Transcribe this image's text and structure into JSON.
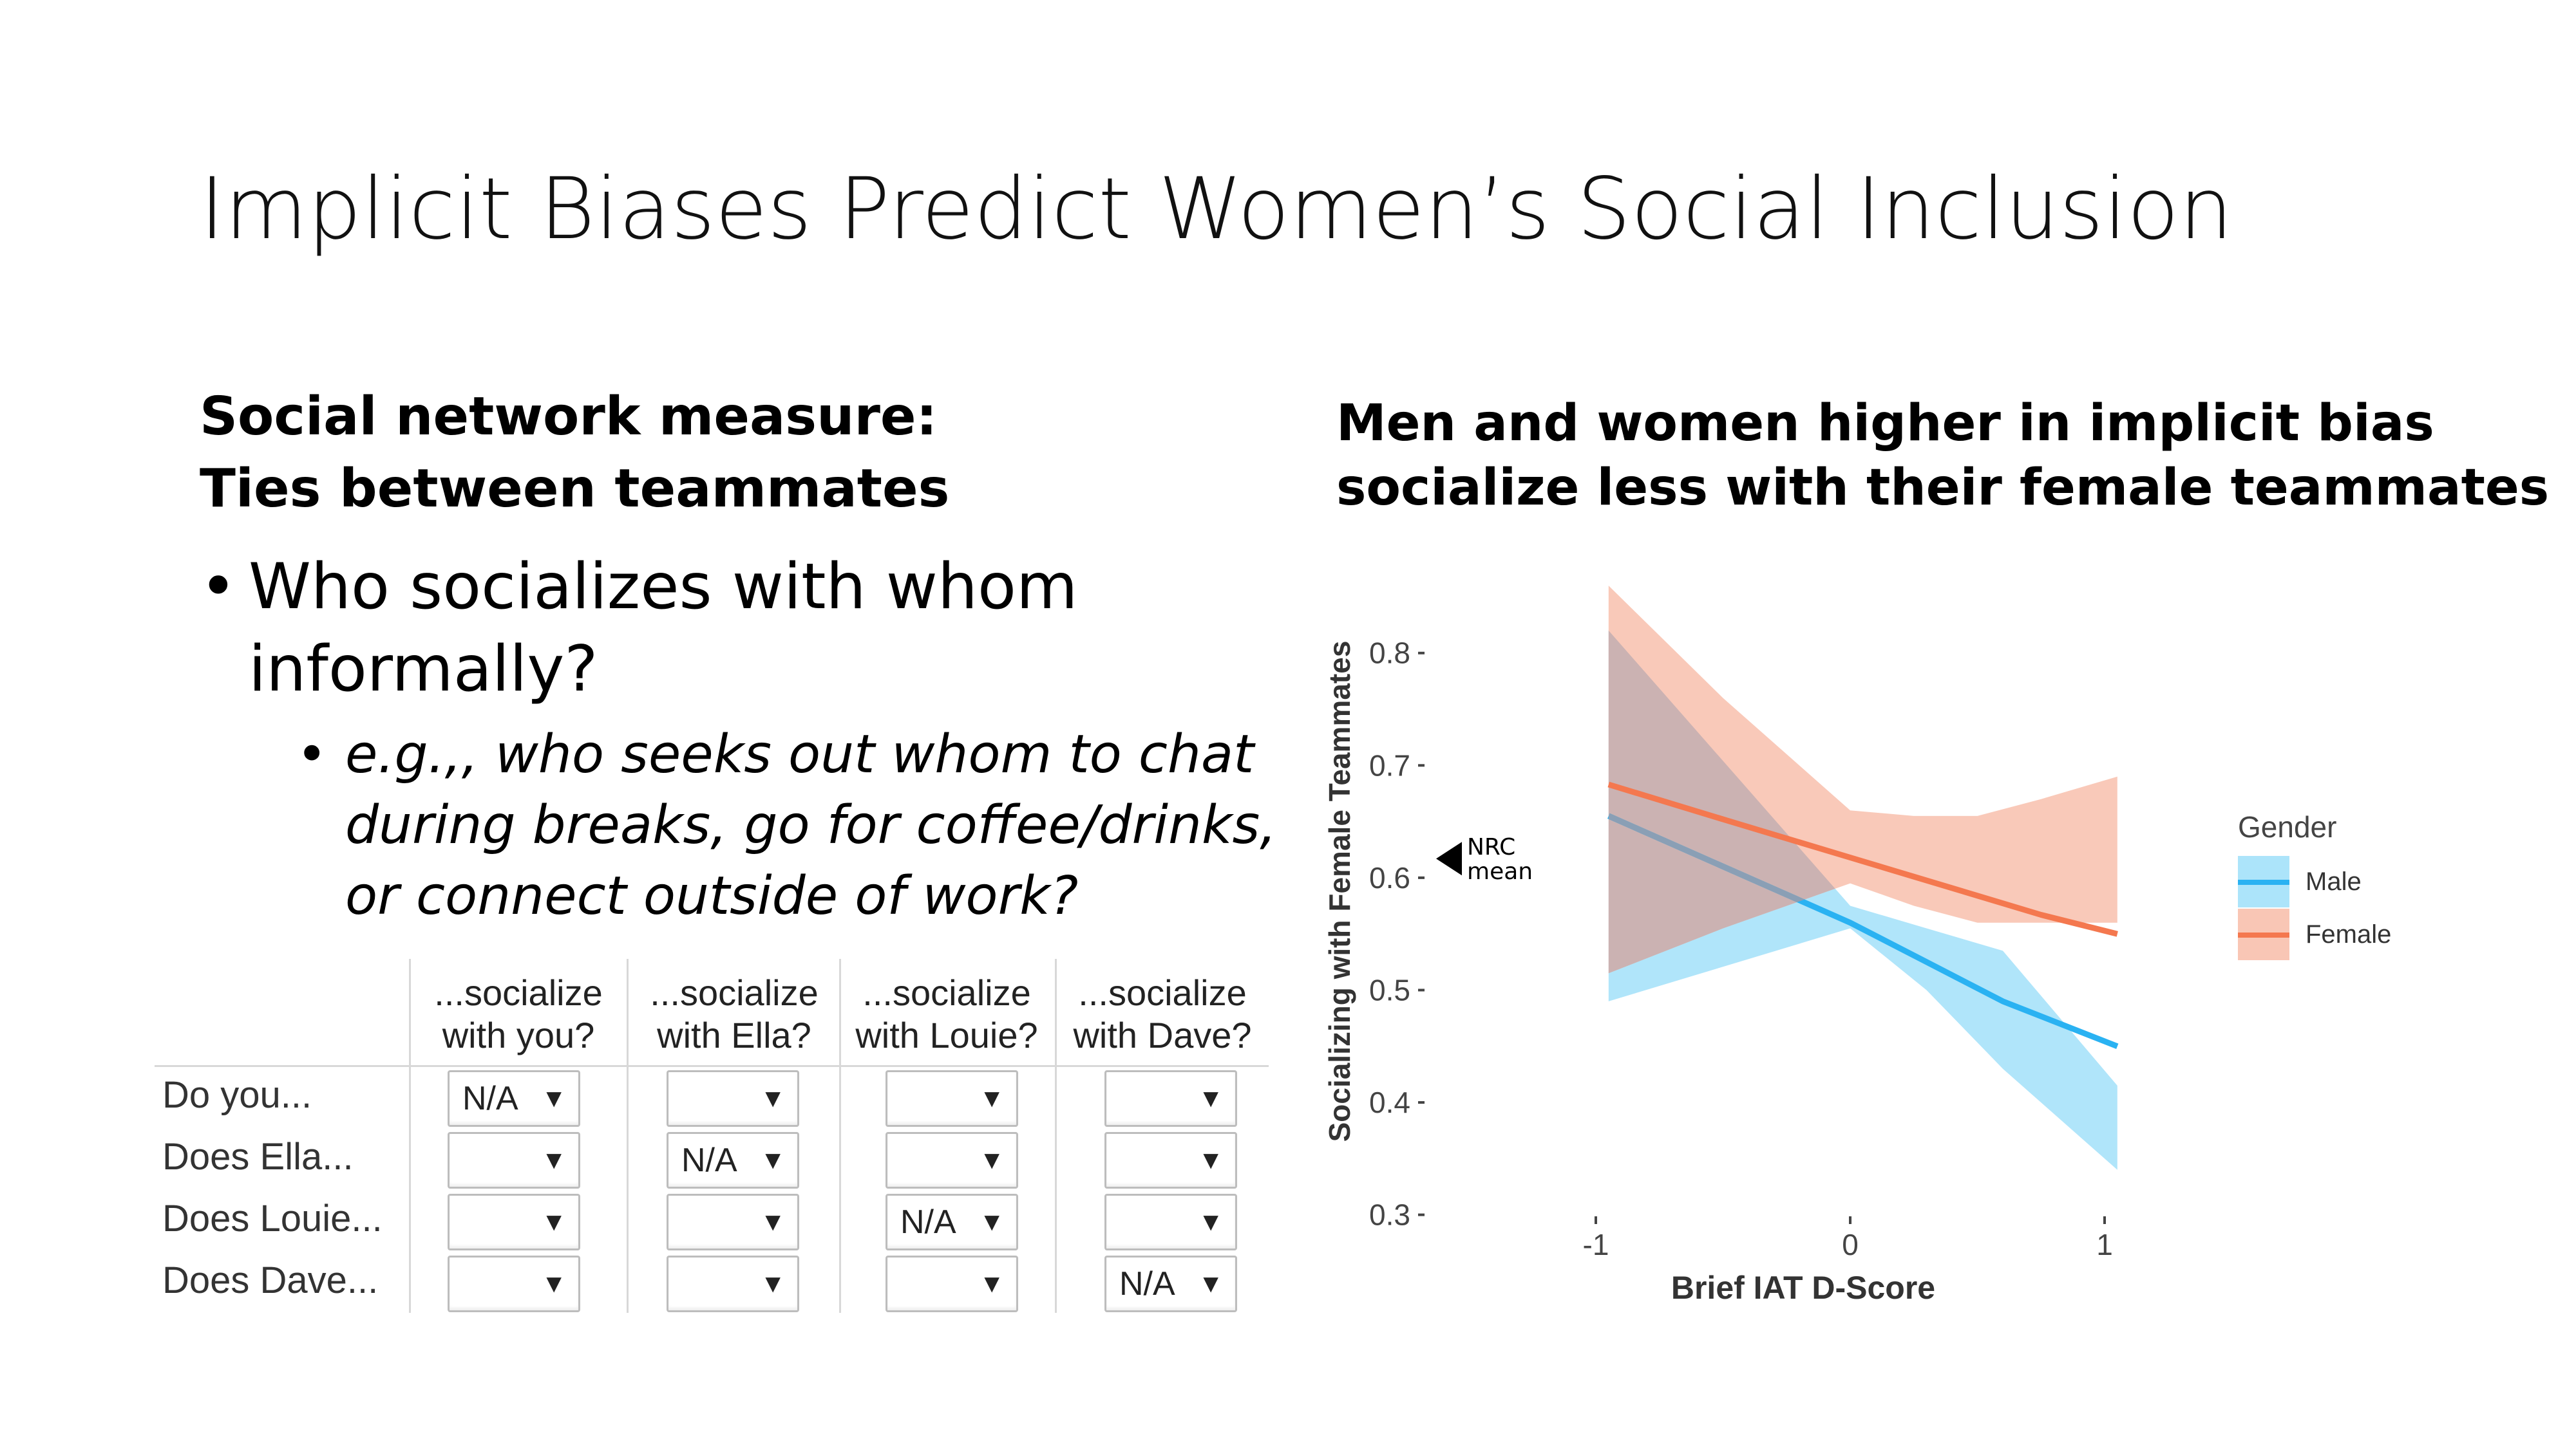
{
  "slide": {
    "title": "Implicit Biases Predict Women’s Social Inclusion",
    "left_heading": [
      "Social network measure:",
      "Ties between teammates"
    ],
    "bullet1": {
      "glyph": "•",
      "lines": [
        "Who socializes with whom",
        "informally?"
      ]
    },
    "bullet2": {
      "glyph": "•",
      "lines": [
        "e.g.,, who seeks out whom to chat",
        "during breaks, go for coffee/drinks,",
        "or connect outside of work?"
      ]
    },
    "chart_heading": [
      "Men and women higher in implicit bias",
      "socialize less with their female teammates"
    ]
  },
  "survey": {
    "columns": [
      [
        "...socialize",
        "with you?"
      ],
      [
        "...socialize",
        "with Ella?"
      ],
      [
        "...socialize",
        "with Louie?"
      ],
      [
        "...socialize",
        "with Dave?"
      ]
    ],
    "rows": [
      {
        "label": "Do you...",
        "cells": [
          "N/A",
          "",
          "",
          ""
        ]
      },
      {
        "label": "Does Ella...",
        "cells": [
          "",
          "N/A",
          "",
          ""
        ]
      },
      {
        "label": "Does Louie...",
        "cells": [
          "",
          "",
          "N/A",
          ""
        ]
      },
      {
        "label": "Does Dave...",
        "cells": [
          "",
          "",
          "",
          "N/A"
        ]
      }
    ],
    "dropdown_arrow": "▼"
  },
  "chart_data": {
    "type": "line",
    "title": "",
    "xlabel": "Brief IAT D-Score",
    "ylabel": "Socializing with Female Teammates",
    "xlim": [
      -1.1,
      1.1
    ],
    "ylim": [
      0.27,
      0.86
    ],
    "xticks": [
      "-1",
      "0",
      "1"
    ],
    "yticks": [
      "0.3",
      "0.4",
      "0.5",
      "0.6",
      "0.7",
      "0.8"
    ],
    "legend_title": "Gender",
    "legend_position": "right",
    "annotation": {
      "text": [
        "NRC",
        "mean"
      ],
      "y": 0.617
    },
    "colors": {
      "Male": "#2ab2f2",
      "Female": "#f4784f",
      "Male_band": "#ace4fa",
      "Female_band": "#f9c6b5",
      "overlap": "#cbb2b2"
    },
    "series": [
      {
        "name": "Male",
        "x": [
          -0.95,
          0,
          0.3,
          0.6,
          1.05
        ],
        "y": [
          0.655,
          0.56,
          0.525,
          0.49,
          0.45
        ],
        "lower": [
          0.49,
          0.555,
          0.5,
          0.43,
          0.34
        ],
        "upper": [
          0.82,
          0.575,
          0.555,
          0.535,
          0.415
        ]
      },
      {
        "name": "Female",
        "x": [
          -0.95,
          -0.5,
          0,
          0.25,
          0.5,
          0.75,
          1.05
        ],
        "y": [
          0.683,
          0.652,
          0.618,
          0.601,
          0.584,
          0.567,
          0.55
        ],
        "lower": [
          0.515,
          0.555,
          0.595,
          0.575,
          0.56,
          0.56,
          0.56
        ],
        "upper": [
          0.86,
          0.76,
          0.66,
          0.655,
          0.655,
          0.67,
          0.69
        ]
      }
    ]
  }
}
